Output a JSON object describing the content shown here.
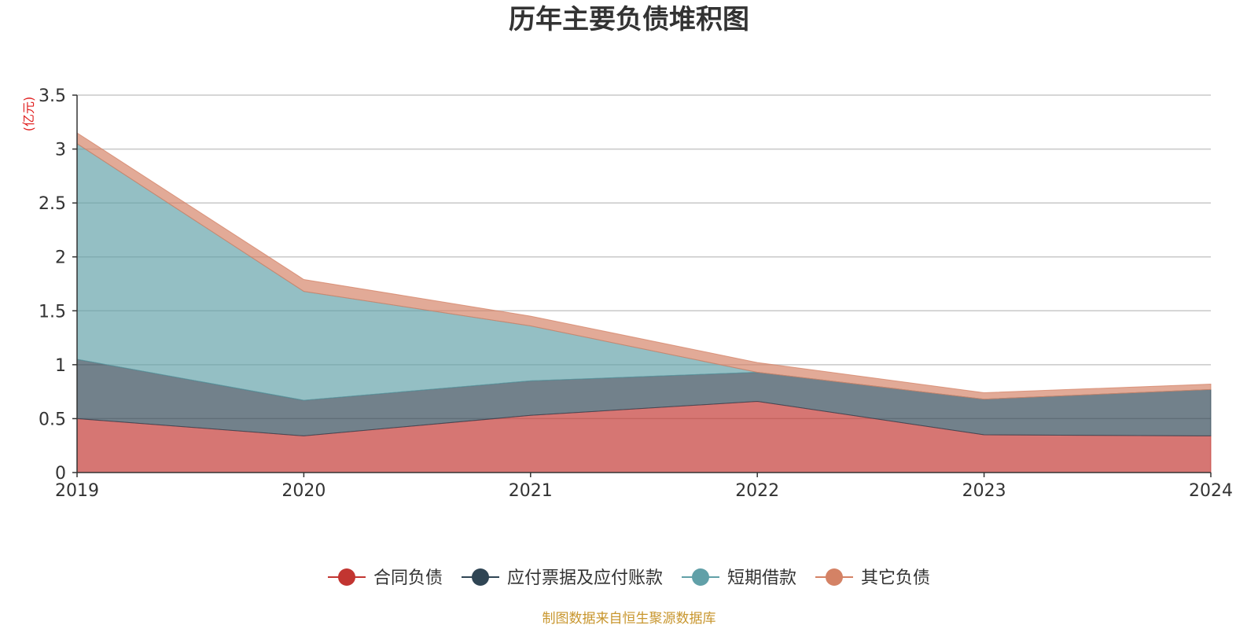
{
  "chart_data": {
    "type": "area",
    "stacked": true,
    "title": "历年主要负债堆积图",
    "unit_label": "(亿元)",
    "x": [
      "2019",
      "2020",
      "2021",
      "2022",
      "2023",
      "2024"
    ],
    "ylim": [
      0,
      3.5
    ],
    "yticks": [
      "0",
      "0.5",
      "1",
      "1.5",
      "2",
      "2.5",
      "3",
      "3.5"
    ],
    "grid": true,
    "legend_position": "bottom",
    "series": [
      {
        "name": "合同负债",
        "color": "#c23531",
        "values": [
          0.5,
          0.34,
          0.53,
          0.66,
          0.35,
          0.34
        ]
      },
      {
        "name": "应付票据及应付账款",
        "color": "#2f4554",
        "values": [
          0.55,
          0.33,
          0.32,
          0.27,
          0.33,
          0.43
        ]
      },
      {
        "name": "短期借款",
        "color": "#61a0a8",
        "values": [
          2.0,
          1.01,
          0.51,
          0.0,
          0.0,
          0.0
        ]
      },
      {
        "name": "其它负债",
        "color": "#d48265",
        "values": [
          0.1,
          0.11,
          0.09,
          0.09,
          0.06,
          0.05
        ]
      }
    ],
    "source": "制图数据来自恒生聚源数据库"
  }
}
